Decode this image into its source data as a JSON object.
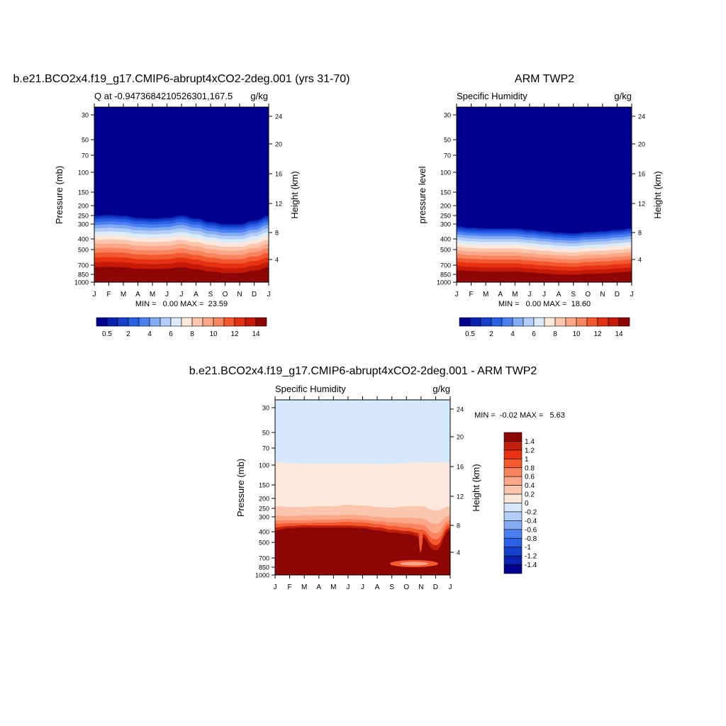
{
  "months": [
    "J",
    "F",
    "M",
    "A",
    "M",
    "J",
    "J",
    "A",
    "S",
    "O",
    "N",
    "D",
    "J"
  ],
  "pressure_ticks": [
    "30",
    "50",
    "70",
    "100",
    "150",
    "200",
    "250",
    "300",
    "400",
    "500",
    "700",
    "850",
    "1000"
  ],
  "height_ticks": [
    "24",
    "20",
    "16",
    "12",
    "8",
    "4"
  ],
  "seq_colors": [
    "#00008e",
    "#0a22b0",
    "#1540cc",
    "#2a60e6",
    "#4c80f2",
    "#82aaf5",
    "#b2cef7",
    "#dcebfa",
    "#fde8dc",
    "#fcc6ae",
    "#fba788",
    "#f98460",
    "#f3582f",
    "#e63212",
    "#c61a08",
    "#8e0505"
  ],
  "seq_labels": [
    "0.5",
    "2",
    "4",
    "6",
    "8",
    "10",
    "12",
    "14"
  ],
  "diff_colors": [
    "#8e0505",
    "#c2200a",
    "#e63212",
    "#f3582f",
    "#f98460",
    "#fba788",
    "#fcc6ae",
    "#fde8dc",
    "#d6e8fb",
    "#b2cef7",
    "#82aaf5",
    "#4c80f2",
    "#2a60e6",
    "#1540cc",
    "#0a22b0",
    "#00008e"
  ],
  "diff_labels": [
    "1.4",
    "1.2",
    "1",
    "0.8",
    "0.6",
    "0.4",
    "0.2",
    "0",
    "-0.2",
    "-0.4",
    "-0.6",
    "-0.8",
    "-1",
    "-1.2",
    "-1.4"
  ],
  "chart_data": [
    {
      "type": "heatmap",
      "title": "b.e21.BCO2x4.f19_g17.CMIP6-abrupt4xCO2-2deg.001 (yrs 31-70)",
      "left_label": "Q at -0.9473684210526301,167.5",
      "right_label": "g/kg",
      "ylabel": "Pressure (mb)",
      "y2label": "Height (km)",
      "stats": "MIN =   0.00 MAX =  23.59",
      "min": 0.0,
      "max": 23.59,
      "ylim": [
        30,
        1000
      ]
    },
    {
      "type": "heatmap",
      "title": "ARM TWP2",
      "left_label": "Specific Humidity",
      "right_label": "g/kg",
      "ylabel": "pressure level",
      "y2label": "Height (km)",
      "stats": "MIN =   0.00 MAX =  18.60",
      "min": 0.0,
      "max": 18.6,
      "ylim": [
        30,
        1000
      ]
    },
    {
      "type": "heatmap",
      "title": "b.e21.BCO2x4.f19_g17.CMIP6-abrupt4xCO2-2deg.001 - ARM TWP2",
      "left_label": "Specific Humidity",
      "right_label": "g/kg",
      "ylabel": "Pressure (mb)",
      "y2label": "Height (km)",
      "stats": "MIN =  -0.02 MAX =   5.63",
      "min": -0.02,
      "max": 5.63,
      "ylim": [
        30,
        1000
      ]
    }
  ]
}
